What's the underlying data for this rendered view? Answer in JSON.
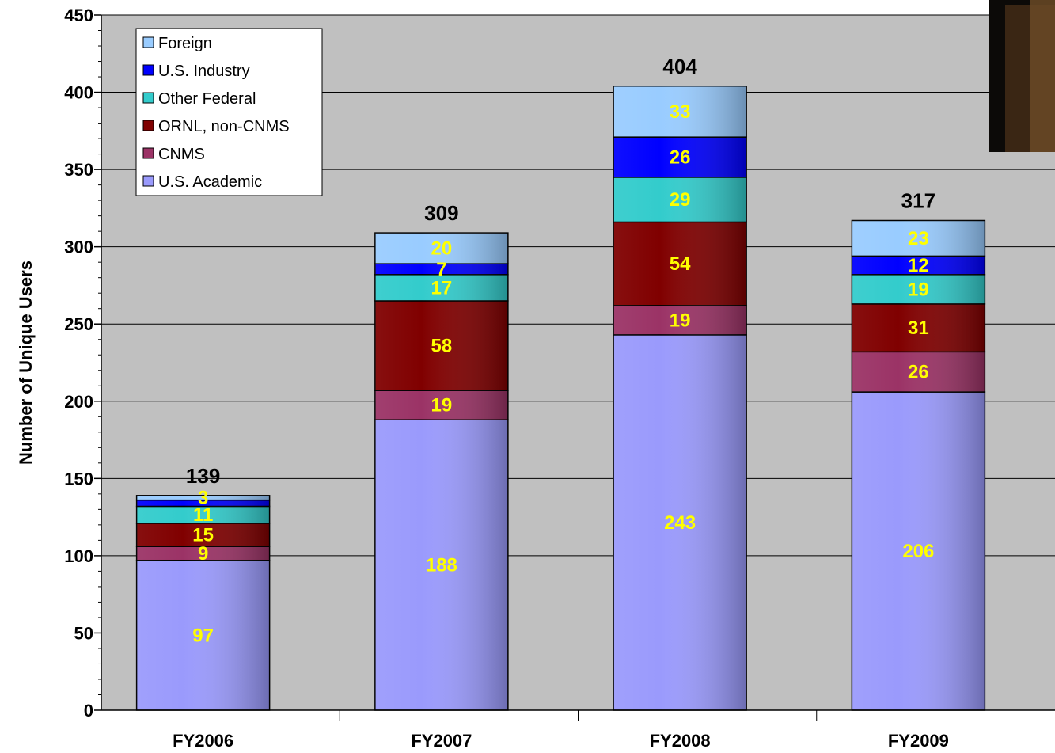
{
  "chart_data": {
    "type": "bar",
    "stacked": true,
    "categories": [
      "FY2006",
      "FY2007",
      "FY2008",
      "FY2009"
    ],
    "series": [
      {
        "name": "U.S. Academic",
        "values": [
          97,
          188,
          243,
          206
        ],
        "color": "#9a9afc"
      },
      {
        "name": "CNMS",
        "values": [
          9,
          19,
          19,
          26
        ],
        "color": "#9b3366"
      },
      {
        "name": "ORNL, non-CNMS",
        "values": [
          15,
          58,
          54,
          31
        ],
        "color": "#800000"
      },
      {
        "name": "Other Federal",
        "values": [
          11,
          17,
          29,
          19
        ],
        "color": "#33cccc"
      },
      {
        "name": "U.S. Industry",
        "values": [
          4,
          7,
          26,
          12
        ],
        "color": "#0000ff"
      },
      {
        "name": "Foreign",
        "values": [
          3,
          20,
          33,
          23
        ],
        "color": "#99ccff"
      }
    ],
    "data_labels": [
      [
        "97",
        "188",
        "243",
        "206"
      ],
      [
        "9",
        "19",
        "19",
        "26"
      ],
      [
        "15",
        "58",
        "54",
        "31"
      ],
      [
        "11",
        "17",
        "29",
        "19"
      ],
      [
        "",
        "7",
        "26",
        "12"
      ],
      [
        "3",
        "20",
        "33",
        "23"
      ]
    ],
    "totals": [
      139,
      309,
      404,
      317
    ],
    "ylabel": "Number of Unique Users",
    "xlabel": "",
    "ylim": [
      0,
      450
    ],
    "y_ticks": [
      0,
      50,
      100,
      150,
      200,
      250,
      300,
      350,
      400,
      450
    ],
    "grid": true,
    "legend_position": "top-left",
    "legend_order": [
      "Foreign",
      "U.S. Industry",
      "Other Federal",
      "ORNL, non-CNMS",
      "CNMS",
      "U.S. Academic"
    ],
    "plot_background": "#c0c0c0",
    "label_color": "#ffff00"
  }
}
